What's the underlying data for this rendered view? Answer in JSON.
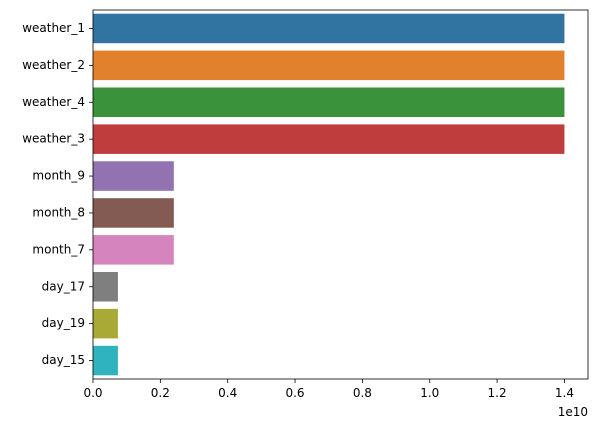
{
  "chart_data": {
    "type": "bar",
    "orientation": "horizontal",
    "categories": [
      "weather_1",
      "weather_2",
      "weather_4",
      "weather_3",
      "month_9",
      "month_8",
      "month_7",
      "day_17",
      "day_19",
      "day_15"
    ],
    "values": [
      14000000000,
      14000000000,
      14000000000,
      14000000000,
      2400000000,
      2400000000,
      2400000000,
      740000000,
      740000000,
      740000000
    ],
    "colors": [
      "#3274a1",
      "#e1812c",
      "#3a923a",
      "#c03d3e",
      "#9372b2",
      "#845b53",
      "#d684bd",
      "#7f7f7f",
      "#a9aa35",
      "#2eb3bf"
    ],
    "x_ticks": [
      0,
      0.2,
      0.4,
      0.6,
      0.8,
      1.0,
      1.2,
      1.4
    ],
    "x_tick_labels": [
      "0.0",
      "0.2",
      "0.4",
      "0.6",
      "0.8",
      "1.0",
      "1.2",
      "1.4"
    ],
    "x_scale_label": "1e10",
    "xlim": [
      0,
      14700000000
    ],
    "title": "",
    "xlabel": "",
    "ylabel": "",
    "grid": false,
    "legend": false
  }
}
